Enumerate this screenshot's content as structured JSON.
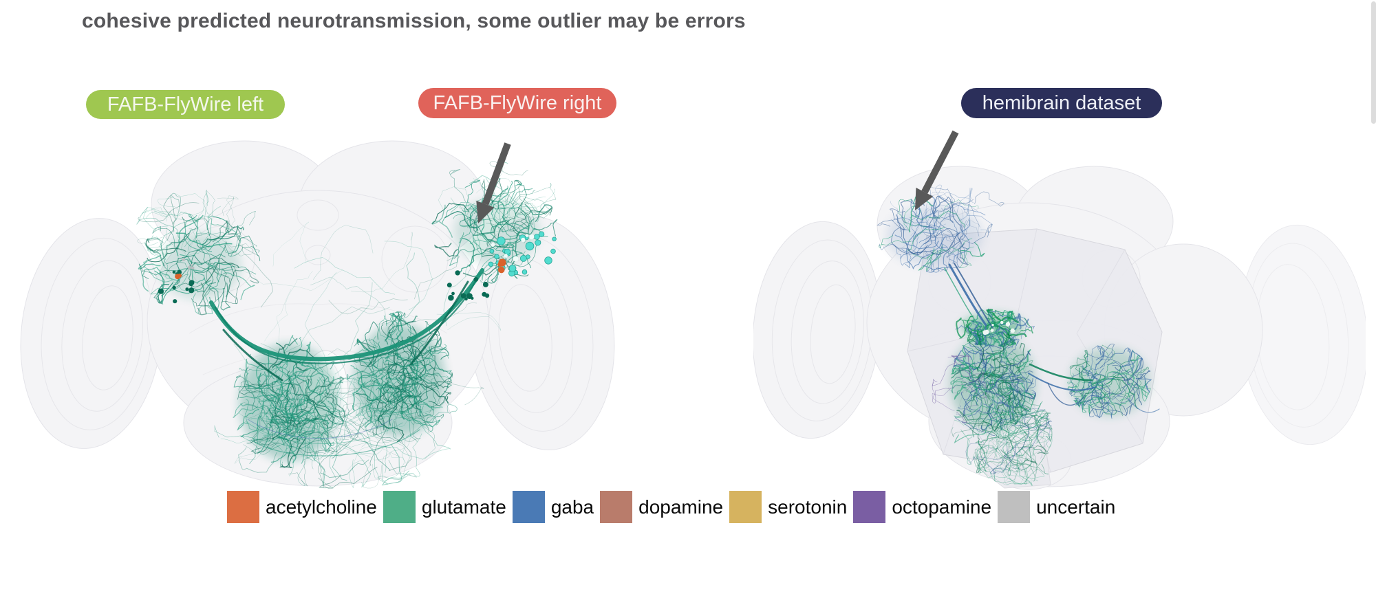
{
  "title": {
    "text": "cohesive predicted neurotransmission, some outlier may be errors"
  },
  "labels": {
    "left_dataset": {
      "text": "FAFB-FlyWire left"
    },
    "right_dataset": {
      "text": "FAFB-FlyWire right"
    },
    "hemibrain_dataset": {
      "text": "hemibrain dataset"
    }
  },
  "panels": {
    "left_brain": {
      "dataset": "FAFB-FlyWire",
      "neuron_colors": [
        "#0e8066",
        "#1c9478",
        "#0a6b55",
        "#2aa183"
      ],
      "synapse_colors": {
        "cyan": "#52dccf",
        "orange": "#d9622b"
      }
    },
    "right_brain": {
      "dataset": "hemibrain",
      "neuron_colors_green": [
        "#14845f",
        "#1f9e74",
        "#0d6b4e"
      ],
      "neuron_colors_blue": [
        "#3c6ea9",
        "#2f5b94",
        "#5581b8"
      ],
      "neuron_color_purple": "#6f5ba0",
      "bright_green": "#0f9455"
    }
  },
  "legend": {
    "items": [
      {
        "label": "acetylcholine",
        "color": "#dc6e42"
      },
      {
        "label": "glutamate",
        "color": "#4fae87"
      },
      {
        "label": "gaba",
        "color": "#4a7ab5"
      },
      {
        "label": "dopamine",
        "color": "#b97c6b"
      },
      {
        "label": "serotonin",
        "color": "#d6b35f"
      },
      {
        "label": "octopamine",
        "color": "#7a5ea3"
      },
      {
        "label": "uncertain",
        "color": "#bfbfbf"
      }
    ]
  },
  "theme": {
    "title-color": "#57575a",
    "pill-left-bg": "#9fc750",
    "pill-left-fg": "#f4f7ec",
    "pill-right-bg": "#e0635a",
    "pill-right-fg": "#faf0ef",
    "pill-hemi-bg": "#2b2f5a",
    "pill-hemi-fg": "#edeff6",
    "arrow-color": "#595959",
    "legend-text": "#0a0a0a",
    "scrollbar-thumb": "#dcdcdc"
  }
}
